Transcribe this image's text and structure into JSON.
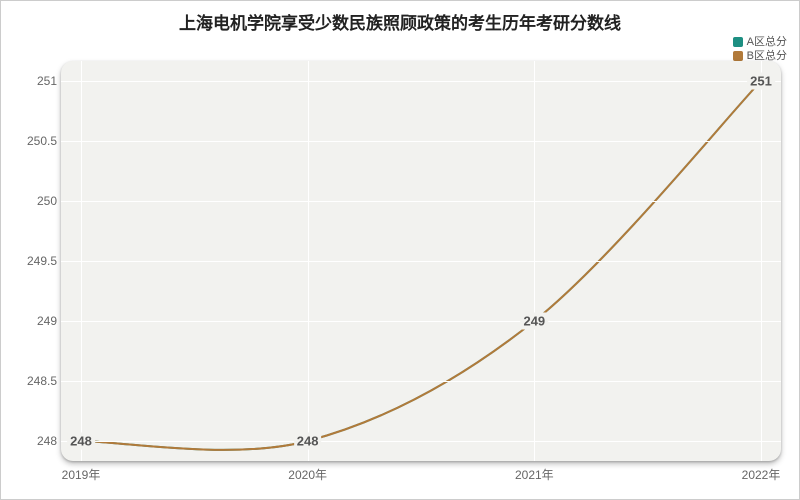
{
  "chart": {
    "type": "line",
    "title": "上海电机学院享受少数民族照顾政策的考生历年考研分数线",
    "title_fontsize": 17,
    "title_color": "#222222",
    "legend": {
      "items": [
        {
          "label": "A区总分",
          "color": "#1d8f82"
        },
        {
          "label": "B区总分",
          "color": "#b27a3a"
        }
      ],
      "fontsize": 11,
      "text_color": "#555555"
    },
    "plot": {
      "background_color": "#f2f2ef",
      "grid_color": "#ffffff",
      "grid_width": 1
    },
    "x_axis": {
      "categories": [
        "2019年",
        "2020年",
        "2021年",
        "2022年"
      ],
      "tick_fontsize": 12,
      "tick_color": "#666666"
    },
    "y_axis": {
      "min": 248,
      "max": 251,
      "step": 0.5,
      "ticks": [
        248,
        248.5,
        249,
        249.5,
        250,
        250.5,
        251
      ],
      "tick_fontsize": 12,
      "tick_color": "#666666"
    },
    "series": [
      {
        "name": "A区总分",
        "color": "#1d8f82",
        "line_width": 2,
        "values": [
          248,
          248,
          249,
          251
        ]
      },
      {
        "name": "B区总分",
        "color": "#b27a3a",
        "line_width": 2,
        "values": [
          248,
          248,
          249,
          251
        ]
      }
    ],
    "data_labels": {
      "values": [
        "248",
        "248",
        "249",
        "251"
      ],
      "fontsize": 13,
      "text_color": "#555555",
      "bg_color": "#f2f2ef"
    }
  }
}
